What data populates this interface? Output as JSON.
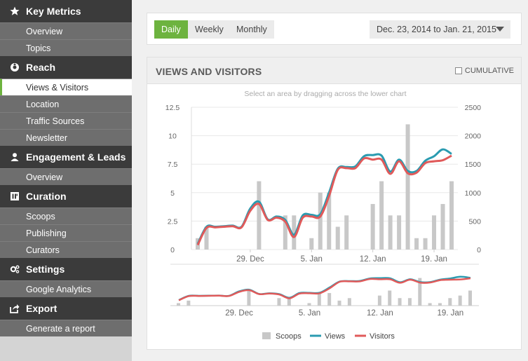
{
  "sidebar": {
    "sections": [
      {
        "title": "Key Metrics",
        "icon": "star-icon",
        "items": [
          {
            "label": "Overview"
          },
          {
            "label": "Topics"
          }
        ]
      },
      {
        "title": "Reach",
        "icon": "reach-icon",
        "items": [
          {
            "label": "Views & Visitors",
            "active": true
          },
          {
            "label": "Location"
          },
          {
            "label": "Traffic Sources"
          },
          {
            "label": "Newsletter"
          }
        ]
      },
      {
        "title": "Engagement & Leads",
        "icon": "user-icon",
        "items": [
          {
            "label": "Overview"
          }
        ]
      },
      {
        "title": "Curation",
        "icon": "curation-icon",
        "items": [
          {
            "label": "Scoops"
          },
          {
            "label": "Publishing"
          },
          {
            "label": "Curators"
          }
        ]
      },
      {
        "title": "Settings",
        "icon": "gear-icon",
        "items": [
          {
            "label": "Google Analytics"
          }
        ]
      },
      {
        "title": "Export",
        "icon": "export-icon",
        "items": [
          {
            "label": "Generate a report"
          }
        ]
      }
    ]
  },
  "toolbar": {
    "tabs": [
      {
        "label": "Daily",
        "active": true
      },
      {
        "label": "Weekly"
      },
      {
        "label": "Monthly"
      }
    ],
    "date_range": "Dec. 23, 2014 to Jan. 21, 2015"
  },
  "panel": {
    "title": "VIEWS AND VISITORS",
    "cumulative_label": "CUMULATIVE",
    "hint": "Select an area by dragging across the lower chart"
  },
  "colors": {
    "accent": "#6db33f",
    "views": "#2a9bb0",
    "visitors": "#e05a5a",
    "scoops": "#c8c8c8"
  },
  "chart_data": {
    "type": "line",
    "x": [
      "2014-12-23",
      "2014-12-24",
      "2014-12-25",
      "2014-12-26",
      "2014-12-27",
      "2014-12-28",
      "2014-12-29",
      "2014-12-30",
      "2014-12-31",
      "2015-01-01",
      "2015-01-02",
      "2015-01-03",
      "2015-01-04",
      "2015-01-05",
      "2015-01-06",
      "2015-01-07",
      "2015-01-08",
      "2015-01-09",
      "2015-01-10",
      "2015-01-11",
      "2015-01-12",
      "2015-01-13",
      "2015-01-14",
      "2015-01-15",
      "2015-01-16",
      "2015-01-17",
      "2015-01-18",
      "2015-01-19",
      "2015-01-20",
      "2015-01-21"
    ],
    "xticks": [
      "29. Dec",
      "5. Jan",
      "12. Jan",
      "19. Jan"
    ],
    "y_left": {
      "ylim": [
        0,
        12.5
      ],
      "ticks": [
        "0",
        "2.5",
        "5",
        "7.5",
        "10",
        "12.5"
      ]
    },
    "y_right": {
      "ylim": [
        0,
        2500
      ],
      "ticks": [
        "0",
        "500",
        "1000",
        "1500",
        "2000",
        "2500"
      ]
    },
    "series": [
      {
        "name": "Scoops",
        "kind": "bar",
        "axis": "left",
        "values": [
          1,
          2,
          0,
          0,
          0,
          0,
          0,
          6,
          0,
          0,
          3,
          3,
          0,
          1,
          5,
          5,
          2,
          3,
          0,
          0,
          4,
          6,
          3,
          3,
          11,
          1,
          1,
          3,
          4,
          6
        ]
      },
      {
        "name": "Views",
        "kind": "line",
        "axis": "right",
        "values": [
          100,
          400,
          400,
          410,
          420,
          400,
          720,
          840,
          530,
          580,
          520,
          260,
          600,
          610,
          620,
          1000,
          1420,
          1450,
          1460,
          1640,
          1660,
          1650,
          1370,
          1580,
          1380,
          1380,
          1560,
          1640,
          1760,
          1680
        ]
      },
      {
        "name": "Visitors",
        "kind": "line",
        "axis": "right",
        "values": [
          80,
          380,
          390,
          400,
          410,
          390,
          680,
          800,
          520,
          560,
          490,
          220,
          560,
          580,
          580,
          940,
          1400,
          1430,
          1430,
          1600,
          1580,
          1580,
          1330,
          1550,
          1340,
          1350,
          1520,
          1550,
          1570,
          1650
        ]
      }
    ],
    "grid": true,
    "legend": "bottom"
  }
}
